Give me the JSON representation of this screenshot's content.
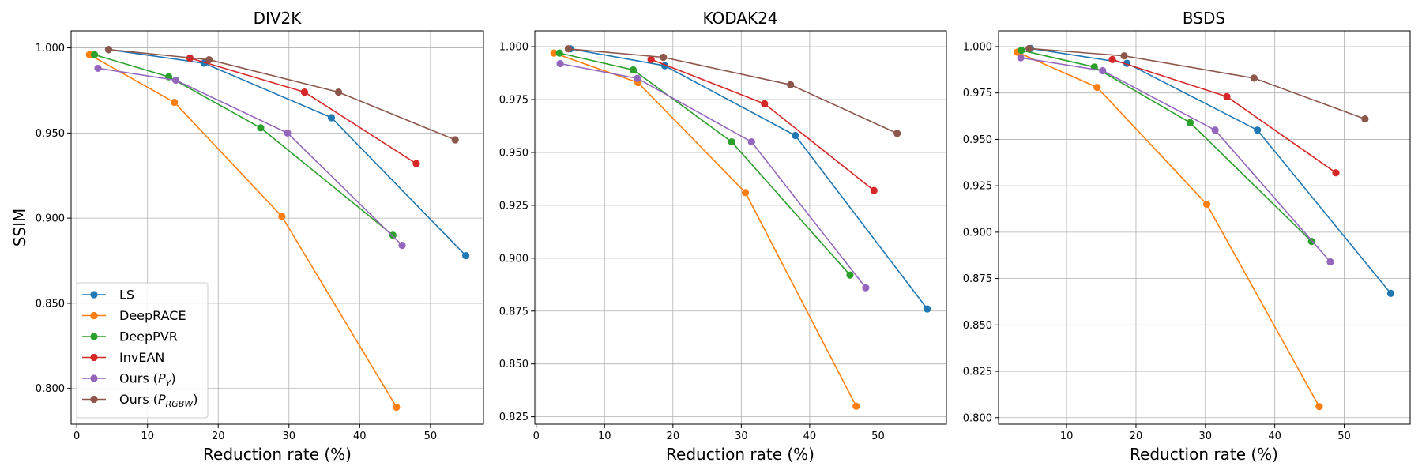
{
  "figure": {
    "ylabel": "SSIM",
    "xlabel": "Reduction rate (%)"
  },
  "legend": [
    {
      "text": "LS",
      "color": "#1f77b4"
    },
    {
      "text": "DeepRACE",
      "color": "#ff7f0e"
    },
    {
      "text": "DeepPVR",
      "color": "#2ca02c"
    },
    {
      "text": "InvEAN",
      "color": "#d62728"
    },
    {
      "text": "Ours (P_Y)",
      "base": "Ours (",
      "sub": "Y",
      "close": ")",
      "color": "#9467bd"
    },
    {
      "text": "Ours (P_RGBW)",
      "base": "Ours (",
      "sub": "RGBW",
      "close": ")",
      "color": "#8c564b"
    }
  ],
  "chart_data": [
    {
      "type": "line",
      "title": "DIV2K",
      "xlabel": "Reduction rate (%)",
      "ylabel": "SSIM",
      "xlim": [
        -0.8,
        57.5
      ],
      "ylim": [
        0.779,
        1.01
      ],
      "xticks": [
        0,
        10,
        20,
        30,
        40,
        50
      ],
      "yticks": [
        0.8,
        0.85,
        0.9,
        0.95,
        1.0
      ],
      "ytick_labels": [
        "0.800",
        "0.850",
        "0.900",
        "0.950",
        "1.000"
      ],
      "grid": true,
      "legend_position": "lower-left",
      "series": [
        {
          "name": "LS",
          "color": "#1f77b4",
          "x": [
            4.5,
            18.0,
            36.0,
            55.0
          ],
          "y": [
            0.999,
            0.991,
            0.959,
            0.878
          ]
        },
        {
          "name": "DeepRACE",
          "color": "#ff7f0e",
          "x": [
            1.8,
            13.8,
            29.0,
            45.2
          ],
          "y": [
            0.996,
            0.968,
            0.901,
            0.789
          ]
        },
        {
          "name": "DeepPVR",
          "color": "#2ca02c",
          "x": [
            2.5,
            13.0,
            26.0,
            44.7
          ],
          "y": [
            0.996,
            0.983,
            0.953,
            0.89
          ]
        },
        {
          "name": "InvEAN",
          "color": "#d62728",
          "x": [
            16.0,
            32.2,
            48.0
          ],
          "y": [
            0.994,
            0.974,
            0.932
          ]
        },
        {
          "name": "Ours (P_Y)",
          "color": "#9467bd",
          "x": [
            3.0,
            14.0,
            29.8,
            46.0
          ],
          "y": [
            0.988,
            0.981,
            0.95,
            0.884
          ]
        },
        {
          "name": "Ours (P_RGBW)",
          "color": "#8c564b",
          "x": [
            4.5,
            18.7,
            37.0,
            53.5
          ],
          "y": [
            0.999,
            0.993,
            0.974,
            0.946
          ]
        }
      ]
    },
    {
      "type": "line",
      "title": "KODAK24",
      "xlabel": "Reduction rate (%)",
      "ylabel": "",
      "xlim": [
        -0.2,
        60.0
      ],
      "ylim": [
        0.8215,
        1.0075
      ],
      "xticks": [
        0,
        10,
        20,
        30,
        40,
        50
      ],
      "yticks": [
        0.825,
        0.85,
        0.875,
        0.9,
        0.925,
        0.95,
        0.975,
        1.0
      ],
      "ytick_labels": [
        "0.825",
        "0.850",
        "0.875",
        "0.900",
        "0.925",
        "0.950",
        "0.975",
        "1.000"
      ],
      "grid": true,
      "legend_position": "none",
      "series": [
        {
          "name": "LS",
          "color": "#1f77b4",
          "x": [
            5.0,
            18.8,
            37.9,
            57.2
          ],
          "y": [
            0.999,
            0.991,
            0.958,
            0.876
          ]
        },
        {
          "name": "DeepRACE",
          "color": "#ff7f0e",
          "x": [
            2.6,
            14.9,
            30.6,
            46.8
          ],
          "y": [
            0.997,
            0.983,
            0.931,
            0.83
          ]
        },
        {
          "name": "DeepPVR",
          "color": "#2ca02c",
          "x": [
            3.4,
            14.2,
            28.6,
            45.9
          ],
          "y": [
            0.997,
            0.989,
            0.955,
            0.892
          ]
        },
        {
          "name": "InvEAN",
          "color": "#d62728",
          "x": [
            16.8,
            33.4,
            49.4
          ],
          "y": [
            0.994,
            0.973,
            0.932
          ]
        },
        {
          "name": "Ours (P_Y)",
          "color": "#9467bd",
          "x": [
            3.5,
            14.8,
            31.5,
            48.2
          ],
          "y": [
            0.992,
            0.985,
            0.955,
            0.886
          ]
        },
        {
          "name": "Ours (P_RGBW)",
          "color": "#8c564b",
          "x": [
            4.7,
            18.6,
            37.2,
            52.8
          ],
          "y": [
            0.999,
            0.995,
            0.982,
            0.959
          ]
        }
      ]
    },
    {
      "type": "line",
      "title": "BSDS",
      "xlabel": "Reduction rate (%)",
      "ylabel": "",
      "xlim": [
        0.2,
        59.5
      ],
      "ylim": [
        0.7965,
        1.0085
      ],
      "xticks": [
        10,
        20,
        30,
        40,
        50
      ],
      "yticks": [
        0.8,
        0.825,
        0.85,
        0.875,
        0.9,
        0.925,
        0.95,
        0.975,
        1.0
      ],
      "ytick_labels": [
        "0.800",
        "0.825",
        "0.850",
        "0.875",
        "0.900",
        "0.925",
        "0.950",
        "0.975",
        "1.000"
      ],
      "grid": true,
      "legend_position": "none",
      "series": [
        {
          "name": "LS",
          "color": "#1f77b4",
          "x": [
            4.8,
            18.7,
            37.5,
            56.7
          ],
          "y": [
            0.999,
            0.991,
            0.955,
            0.867
          ]
        },
        {
          "name": "DeepRACE",
          "color": "#ff7f0e",
          "x": [
            2.9,
            14.4,
            30.2,
            46.4
          ],
          "y": [
            0.997,
            0.978,
            0.915,
            0.806
          ]
        },
        {
          "name": "DeepPVR",
          "color": "#2ca02c",
          "x": [
            3.5,
            14.0,
            27.8,
            45.3
          ],
          "y": [
            0.998,
            0.989,
            0.959,
            0.895
          ]
        },
        {
          "name": "InvEAN",
          "color": "#d62728",
          "x": [
            16.6,
            33.1,
            48.8
          ],
          "y": [
            0.993,
            0.973,
            0.932
          ]
        },
        {
          "name": "Ours (P_Y)",
          "color": "#9467bd",
          "x": [
            3.4,
            15.2,
            31.4,
            48.0
          ],
          "y": [
            0.994,
            0.987,
            0.955,
            0.884
          ]
        },
        {
          "name": "Ours (P_RGBW)",
          "color": "#8c564b",
          "x": [
            4.6,
            18.3,
            37.0,
            53.0
          ],
          "y": [
            0.999,
            0.995,
            0.983,
            0.961
          ]
        }
      ]
    }
  ]
}
